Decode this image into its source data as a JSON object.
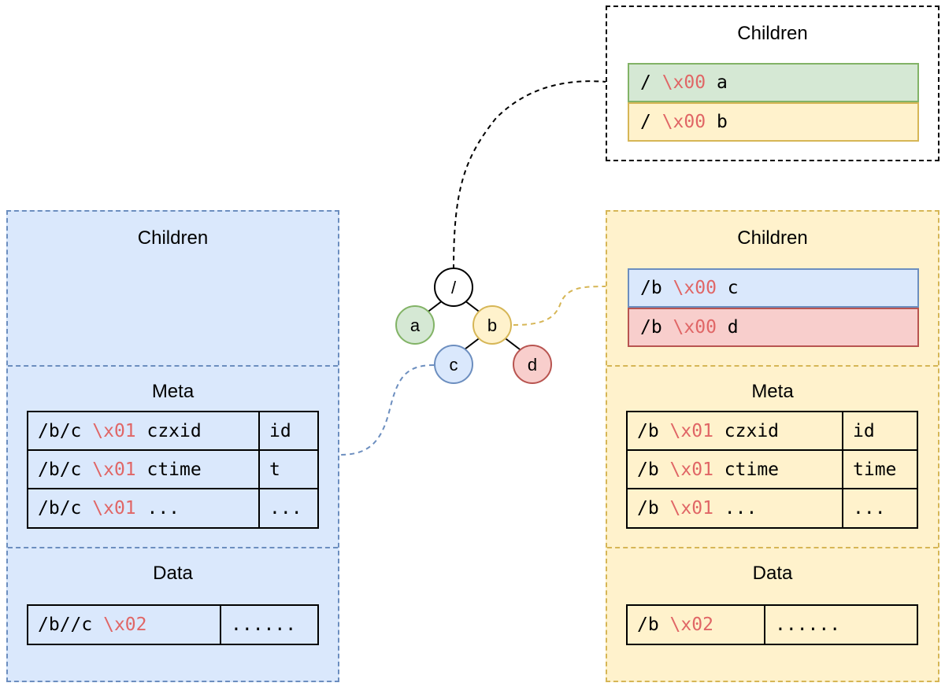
{
  "sep_char": "\\x00",
  "top_box": {
    "title": "Children",
    "rows": [
      {
        "prefix": "/ ",
        "sep": "\\x00",
        "suffix": " a"
      },
      {
        "prefix": "/ ",
        "sep": "\\x00",
        "suffix": " b"
      }
    ]
  },
  "tree": {
    "root": "/",
    "nodes": [
      "a",
      "b",
      "c",
      "d"
    ]
  },
  "left_panel": {
    "children_title": "Children",
    "meta_title": "Meta",
    "meta_rows": [
      {
        "prefix": "/b/c ",
        "sep": "\\x01",
        "suffix": " czxid",
        "value": "id"
      },
      {
        "prefix": "/b/c ",
        "sep": "\\x01",
        "suffix": " ctime",
        "value": "t"
      },
      {
        "prefix": "/b/c ",
        "sep": "\\x01",
        "suffix": " ...",
        "value": "..."
      }
    ],
    "data_title": "Data",
    "data_row": {
      "prefix": "/b//c ",
      "sep": "\\x02",
      "suffix": "",
      "value": "......"
    }
  },
  "right_panel": {
    "children_title": "Children",
    "children_rows": [
      {
        "prefix": "/b ",
        "sep": "\\x00",
        "suffix": " c"
      },
      {
        "prefix": "/b ",
        "sep": "\\x00",
        "suffix": " d"
      }
    ],
    "meta_title": "Meta",
    "meta_rows": [
      {
        "prefix": "/b ",
        "sep": "\\x01",
        "suffix": " czxid",
        "value": "id"
      },
      {
        "prefix": "/b ",
        "sep": "\\x01",
        "suffix": " ctime",
        "value": "time"
      },
      {
        "prefix": "/b ",
        "sep": "\\x01",
        "suffix": " ...",
        "value": "..."
      }
    ],
    "data_title": "Data",
    "data_row": {
      "prefix": "/b ",
      "sep": "\\x02",
      "suffix": "",
      "value": "......"
    }
  },
  "colors": {
    "green_fill": "#d5e8d4",
    "green_stroke": "#82b366",
    "yellow_fill": "#fff2cc",
    "yellow_stroke": "#d6b656",
    "blue_fill": "#dae8fc",
    "blue_stroke": "#6c8ebf",
    "red_fill": "#f8cecc",
    "red_stroke": "#b85450",
    "separator_text": "#e06666"
  }
}
